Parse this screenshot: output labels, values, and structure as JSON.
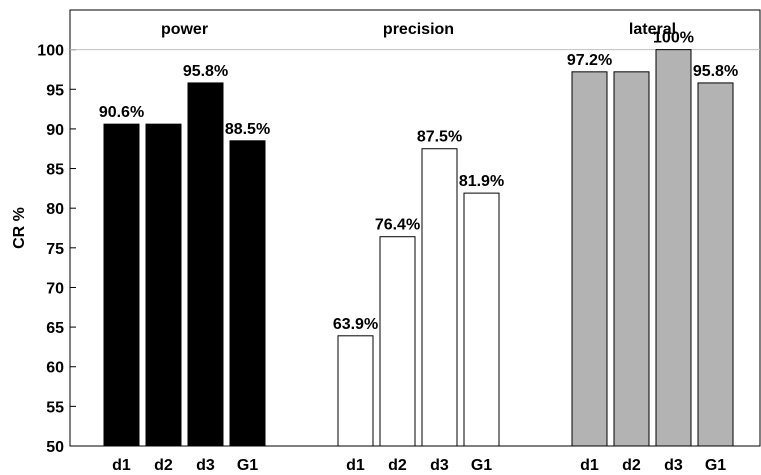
{
  "chart_data": {
    "type": "bar",
    "title": "",
    "xlabel": "",
    "ylabel": "CR %",
    "ylim": [
      50,
      105
    ],
    "yticks": [
      50,
      55,
      60,
      65,
      70,
      75,
      80,
      85,
      90,
      95,
      100
    ],
    "reference_line": 100,
    "groups": [
      {
        "name": "power",
        "color": "#000000",
        "categories": [
          "d1",
          "d2",
          "d3",
          "G1"
        ],
        "values": [
          90.6,
          90.6,
          95.8,
          88.5
        ],
        "labels": [
          "90.6%",
          "",
          "95.8%",
          "88.5%"
        ]
      },
      {
        "name": "precision",
        "color": "#ffffff",
        "categories": [
          "d1",
          "d2",
          "d3",
          "G1"
        ],
        "values": [
          63.9,
          76.4,
          87.5,
          81.9
        ],
        "labels": [
          "63.9%",
          "76.4%",
          "87.5%",
          "81.9%"
        ]
      },
      {
        "name": "lateral",
        "color": "#b3b3b3",
        "categories": [
          "d1",
          "d2",
          "d3",
          "G1"
        ],
        "values": [
          97.2,
          97.2,
          100,
          95.8
        ],
        "labels": [
          "97.2%",
          "",
          "100%",
          "95.8%"
        ]
      }
    ]
  }
}
